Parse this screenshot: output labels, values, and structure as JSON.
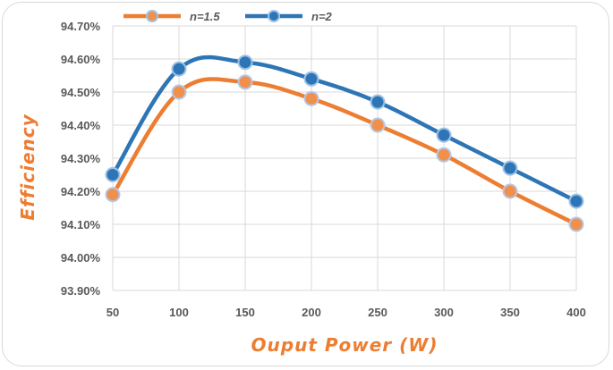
{
  "chart_data": {
    "type": "line",
    "xlabel": "Ouput Power (W)",
    "ylabel": "Efficiency",
    "x": [
      50,
      100,
      150,
      200,
      250,
      300,
      350,
      400
    ],
    "xlim": [
      50,
      400
    ],
    "ylim": [
      93.9,
      94.7
    ],
    "y_ticks": [
      "93.90%",
      "94.00%",
      "94.10%",
      "94.20%",
      "94.30%",
      "94.40%",
      "94.50%",
      "94.60%",
      "94.70%"
    ],
    "x_ticks": [
      "50",
      "100",
      "150",
      "200",
      "250",
      "300",
      "350",
      "400"
    ],
    "grid": "on",
    "legend_position": "top",
    "series": [
      {
        "name": "n=1.5",
        "color": "#ed7d31",
        "marker_fill": "#f0904a",
        "values": [
          94.19,
          94.5,
          94.53,
          94.48,
          94.4,
          94.31,
          94.2,
          94.1
        ]
      },
      {
        "name": "n=2",
        "color": "#2e75b6",
        "marker_fill": "#2e75b6",
        "values": [
          94.25,
          94.57,
          94.59,
          94.54,
          94.47,
          94.37,
          94.27,
          94.17
        ]
      }
    ],
    "colors": {
      "axis_title": "#ed7d31",
      "gridline": "#d9d9d9",
      "tick_text": "#595959"
    }
  }
}
